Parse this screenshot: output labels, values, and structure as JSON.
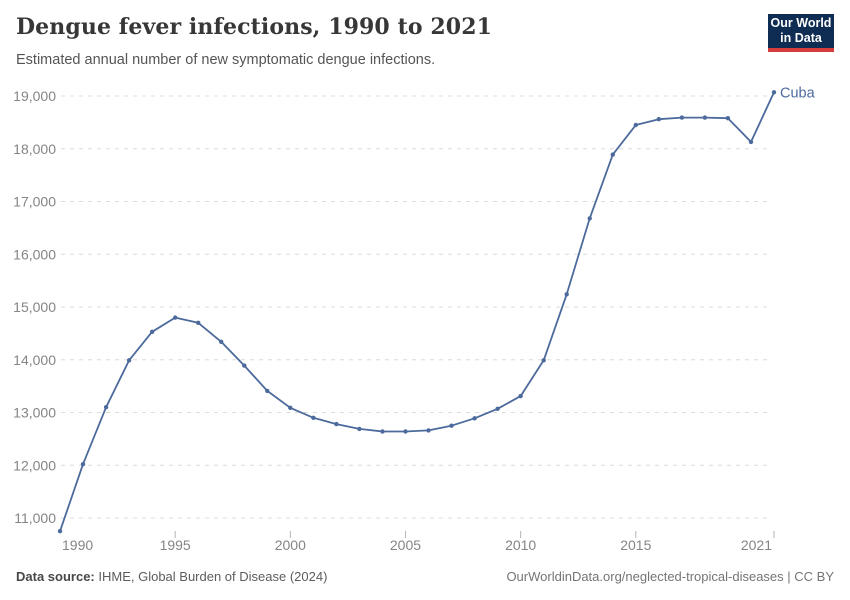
{
  "header": {
    "title": "Dengue fever infections, 1990 to 2021",
    "subtitle": "Estimated annual number of new symptomatic dengue infections."
  },
  "logo": {
    "line1": "Our World",
    "line2": "in Data",
    "bg_color": "#0f2d52",
    "accent_color": "#d73c3c"
  },
  "chart_data": {
    "type": "line",
    "title": "Dengue fever infections, 1990 to 2021",
    "xlabel": "",
    "ylabel": "",
    "x_ticks": [
      1990,
      1995,
      2000,
      2005,
      2010,
      2015,
      2021
    ],
    "y_ticks": [
      11000,
      12000,
      13000,
      14000,
      15000,
      16000,
      17000,
      18000,
      19000
    ],
    "xlim": [
      1990,
      2021
    ],
    "ylim": [
      10700,
      19100
    ],
    "grid": "horizontal-dashed",
    "legend_position": "end-of-line",
    "line_color": "#4c6a9c",
    "grid_color": "#dcdcdc",
    "axis_label_color": "#858585",
    "series": [
      {
        "name": "Cuba",
        "color": "#4c6a9c",
        "x": [
          1990,
          1991,
          1992,
          1993,
          1994,
          1995,
          1996,
          1997,
          1998,
          1999,
          2000,
          2001,
          2002,
          2003,
          2004,
          2005,
          2006,
          2007,
          2008,
          2009,
          2010,
          2011,
          2012,
          2013,
          2014,
          2015,
          2016,
          2017,
          2018,
          2019,
          2020,
          2021
        ],
        "values": [
          10750,
          12020,
          13100,
          13990,
          14530,
          14800,
          14700,
          14340,
          13890,
          13410,
          13090,
          12900,
          12780,
          12690,
          12640,
          12640,
          12660,
          12750,
          12890,
          13070,
          13310,
          13990,
          15240,
          16680,
          17890,
          18450,
          18560,
          18590,
          18590,
          18580,
          18130,
          19070
        ]
      }
    ]
  },
  "footer": {
    "source_label": "Data source:",
    "source_text": " IHME, Global Burden of Disease (2024)",
    "link_text": "OurWorldinData.org/neglected-tropical-diseases | CC BY"
  }
}
